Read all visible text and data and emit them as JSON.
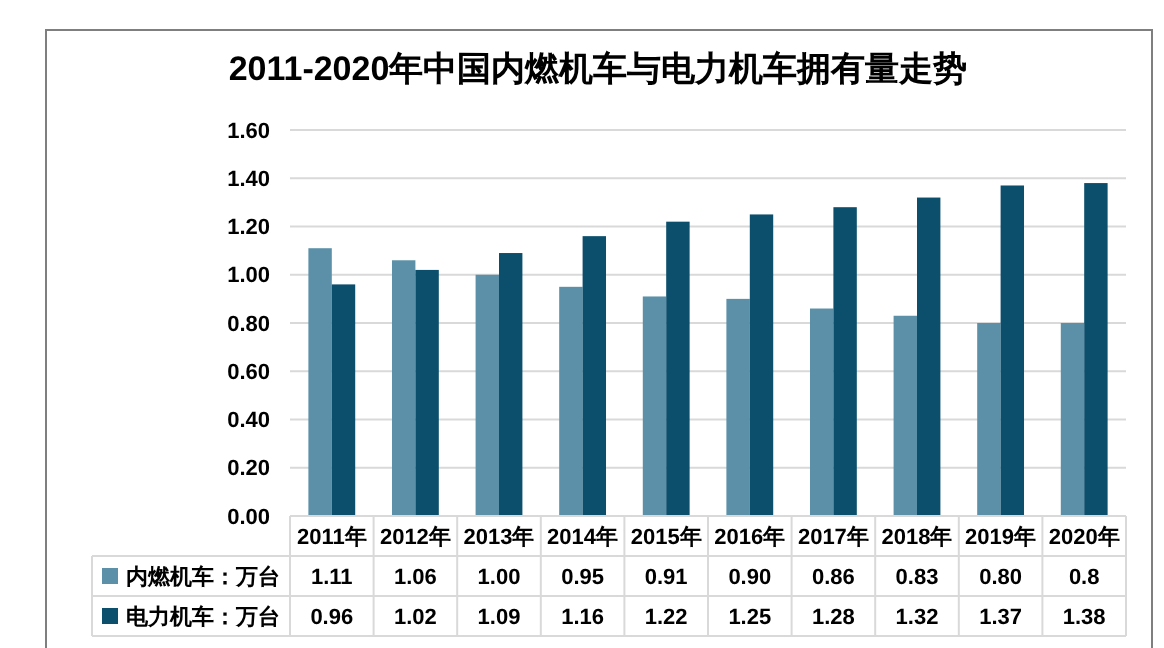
{
  "chart_data": {
    "type": "bar",
    "title": "2011-2020年中国内燃机车与电力机车拥有量走势",
    "categories": [
      "2011年",
      "2012年",
      "2013年",
      "2014年",
      "2015年",
      "2016年",
      "2017年",
      "2018年",
      "2019年",
      "2020年"
    ],
    "series": [
      {
        "name": "内燃机车：万台",
        "color": "#5b90a8",
        "values": [
          1.11,
          1.06,
          1.0,
          0.95,
          0.91,
          0.9,
          0.86,
          0.83,
          0.8,
          0.8
        ],
        "value_labels": [
          "1.11",
          "1.06",
          "1.00",
          "0.95",
          "0.91",
          "0.90",
          "0.86",
          "0.83",
          "0.80",
          "0.8"
        ]
      },
      {
        "name": "电力机车：万台",
        "color": "#0b4f6c",
        "values": [
          0.96,
          1.02,
          1.09,
          1.16,
          1.22,
          1.25,
          1.28,
          1.32,
          1.37,
          1.38
        ],
        "value_labels": [
          "0.96",
          "1.02",
          "1.09",
          "1.16",
          "1.22",
          "1.25",
          "1.28",
          "1.32",
          "1.37",
          "1.38"
        ]
      }
    ],
    "ylim": [
      0,
      1.6
    ],
    "yticks": [
      "0.00",
      "0.20",
      "0.40",
      "0.60",
      "0.80",
      "1.00",
      "1.20",
      "1.40",
      "1.60"
    ],
    "grid": "y",
    "legend": "bottom"
  }
}
